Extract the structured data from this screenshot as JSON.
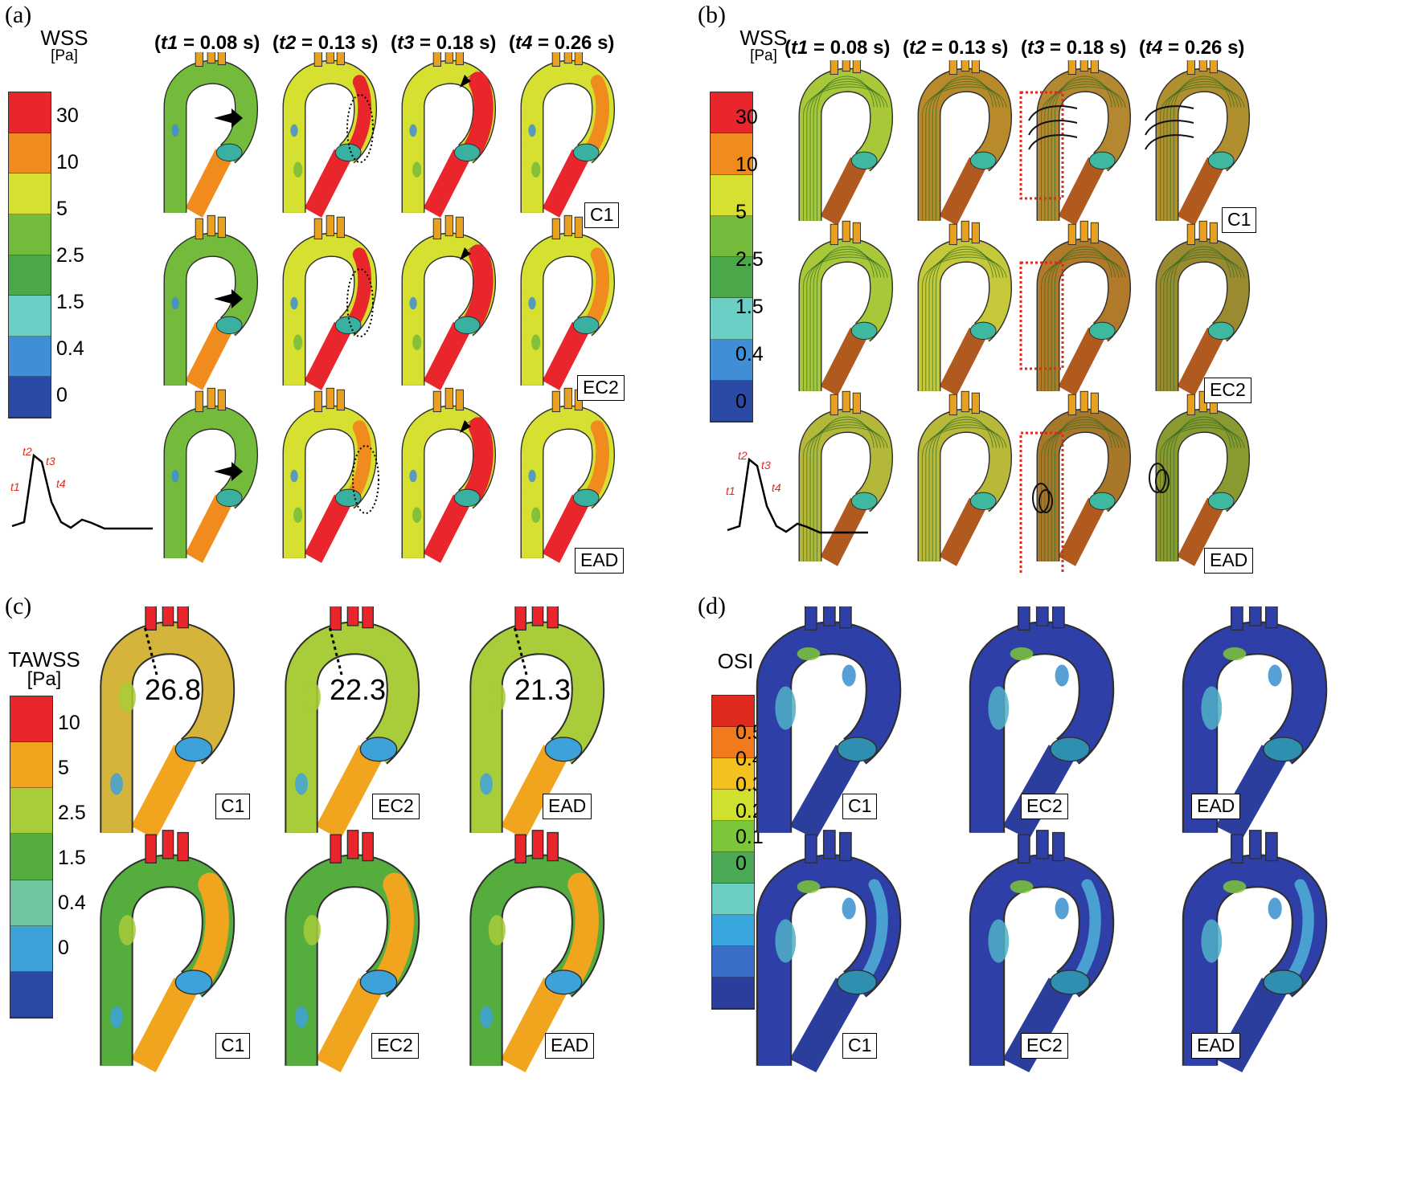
{
  "panel_a": {
    "label": "(a)",
    "legend_title": "WSS",
    "legend_unit": "[Pa]",
    "ticks": [
      "30",
      "10",
      "5",
      "2.5",
      "1.5",
      "0.4",
      "0"
    ],
    "time_headers": [
      {
        "name": "t1",
        "value": " = 0.08 s)"
      },
      {
        "name": "t2",
        "value": " = 0.13 s)"
      },
      {
        "name": "t3",
        "value": " = 0.18 s)"
      },
      {
        "name": "t4",
        "value": " = 0.26 s)"
      }
    ],
    "row_labels": [
      "C1",
      "EC2",
      "EAD"
    ],
    "waveform_labels": [
      "t2",
      "t3",
      "t1",
      "t4"
    ]
  },
  "panel_b": {
    "label": "(b)",
    "legend_title": "WSS",
    "legend_unit": "[Pa]",
    "ticks": [
      "30",
      "10",
      "5",
      "2.5",
      "1.5",
      "0.4",
      "0"
    ],
    "time_headers": [
      {
        "name": "t1",
        "value": " = 0.08 s)"
      },
      {
        "name": "t2",
        "value": " = 0.13 s)"
      },
      {
        "name": "t3",
        "value": " = 0.18 s)"
      },
      {
        "name": "t4",
        "value": " = 0.26 s)"
      }
    ],
    "row_labels": [
      "C1",
      "EC2",
      "EAD"
    ],
    "waveform_labels": [
      "t2",
      "t3",
      "t1",
      "t4"
    ]
  },
  "panel_c": {
    "label": "(c)",
    "legend_title": "TAWSS",
    "legend_unit": "[Pa]",
    "ticks": [
      "10",
      "5",
      "2.5",
      "1.5",
      "0.4",
      "0"
    ],
    "values": [
      "26.8",
      "22.3",
      "21.3"
    ],
    "col_labels": [
      "C1",
      "EC2",
      "EAD"
    ]
  },
  "panel_d": {
    "label": "(d)",
    "legend_title": "OSI",
    "ticks": [
      "0.5",
      "0.4",
      "0.3",
      "0.2",
      "0.1",
      "0"
    ],
    "col_labels": [
      "C1",
      "EC2",
      "EAD"
    ]
  },
  "colors": {
    "wss_scale": [
      "#e8262b",
      "#f08c1e",
      "#d6e030",
      "#74bb3c",
      "#4aa84a",
      "#6ccfc6",
      "#3f8ed6",
      "#2b4aa6"
    ],
    "tawss_scale": [
      "#e8262b",
      "#f1a51f",
      "#a8cc3a",
      "#55ad3e",
      "#6fc59e",
      "#3ea2da",
      "#2b4aa6"
    ],
    "osi_scale": [
      "#e02a1e",
      "#f07a1c",
      "#f3c21f",
      "#cfe02e",
      "#7cc63a",
      "#4aaa55",
      "#6ccfc4",
      "#3aa6de",
      "#3a6fc8",
      "#2b3e9c"
    ],
    "arrow": "#000000",
    "highlight_box": "#e02a1e"
  }
}
